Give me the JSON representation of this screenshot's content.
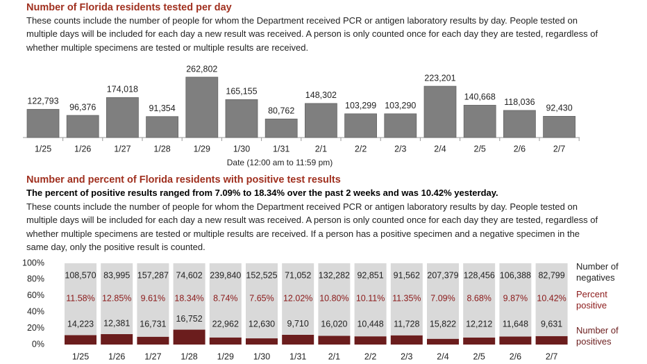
{
  "chart_data": [
    {
      "type": "bar",
      "title": "Number of Florida residents tested per day",
      "description": "These counts include the number of people for whom the Department received PCR or antigen laboratory results by day. People tested on multiple days will be included for each day a new result was received. A person is only counted once for each day they are tested, regardless of whether multiple specimens are tested or multiple results are received.",
      "categories": [
        "1/25",
        "1/26",
        "1/27",
        "1/28",
        "1/29",
        "1/30",
        "1/31",
        "2/1",
        "2/2",
        "2/3",
        "2/4",
        "2/5",
        "2/6",
        "2/7"
      ],
      "values": [
        122793,
        96376,
        174018,
        91354,
        262802,
        165155,
        80762,
        148302,
        103299,
        103290,
        223201,
        140668,
        118036,
        92430
      ],
      "value_labels": [
        "122,793",
        "96,376",
        "174,018",
        "91,354",
        "262,802",
        "165,155",
        "80,762",
        "148,302",
        "103,299",
        "103,290",
        "223,201",
        "140,668",
        "118,036",
        "92,430"
      ],
      "xlabel": "Date (12:00 am to 11:59 pm)",
      "color": "#7f7f7f"
    },
    {
      "type": "stacked_percent_bar",
      "title": "Number and percent of Florida residents with positive test results",
      "subtitle": "The percent of positive results ranged from 7.09% to 18.34% over the past 2 weeks and was 10.42% yesterday.",
      "description": "These counts include the number of people for whom the Department received PCR or antigen laboratory results by day. People tested on multiple days will be included for each day a new result was received. A person is only counted once for each day they are tested, regardless of whether multiple specimens are tested or multiple results are received. If a person has a positive specimen and a negative specimen in the same day, only the positive result is counted.",
      "categories": [
        "1/25",
        "1/26",
        "1/27",
        "1/28",
        "1/29",
        "1/30",
        "1/31",
        "2/1",
        "2/2",
        "2/3",
        "2/4",
        "2/5",
        "2/6",
        "2/7"
      ],
      "series": [
        {
          "name": "Number of positives",
          "color": "#6b1d1d",
          "values": [
            14223,
            12381,
            16731,
            16752,
            22962,
            12630,
            9710,
            16020,
            10448,
            11728,
            15822,
            12212,
            11648,
            9631
          ],
          "value_labels": [
            "14,223",
            "12,381",
            "16,731",
            "16,752",
            "22,962",
            "12,630",
            "9,710",
            "16,020",
            "10,448",
            "11,728",
            "15,822",
            "12,212",
            "11,648",
            "9,631"
          ]
        },
        {
          "name": "Number of negatives",
          "color": "#d9d9d9",
          "values": [
            108570,
            83995,
            157287,
            74602,
            239840,
            152525,
            71052,
            132282,
            92851,
            91562,
            207379,
            128456,
            106388,
            82799
          ],
          "value_labels": [
            "108,570",
            "83,995",
            "157,287",
            "74,602",
            "239,840",
            "152,525",
            "71,052",
            "132,282",
            "92,851",
            "91,562",
            "207,379",
            "128,456",
            "106,388",
            "82,799"
          ]
        }
      ],
      "percent": {
        "name": "Percent positive",
        "color": "#8b1a1a",
        "values": [
          11.58,
          12.85,
          9.61,
          18.34,
          8.74,
          7.65,
          12.02,
          10.8,
          10.11,
          11.35,
          7.09,
          8.68,
          9.87,
          10.42
        ],
        "value_labels": [
          "11.58%",
          "12.85%",
          "9.61%",
          "18.34%",
          "8.74%",
          "7.65%",
          "12.02%",
          "10.80%",
          "10.11%",
          "11.35%",
          "7.09%",
          "8.68%",
          "9.87%",
          "10.42%"
        ]
      },
      "ylim": [
        0,
        100
      ],
      "yticks": [
        {
          "value": 0,
          "label": "0%"
        },
        {
          "value": 20,
          "label": "20%"
        },
        {
          "value": 40,
          "label": "40%"
        },
        {
          "value": 60,
          "label": "60%"
        },
        {
          "value": 80,
          "label": "80%"
        },
        {
          "value": 100,
          "label": "100%"
        }
      ]
    }
  ]
}
